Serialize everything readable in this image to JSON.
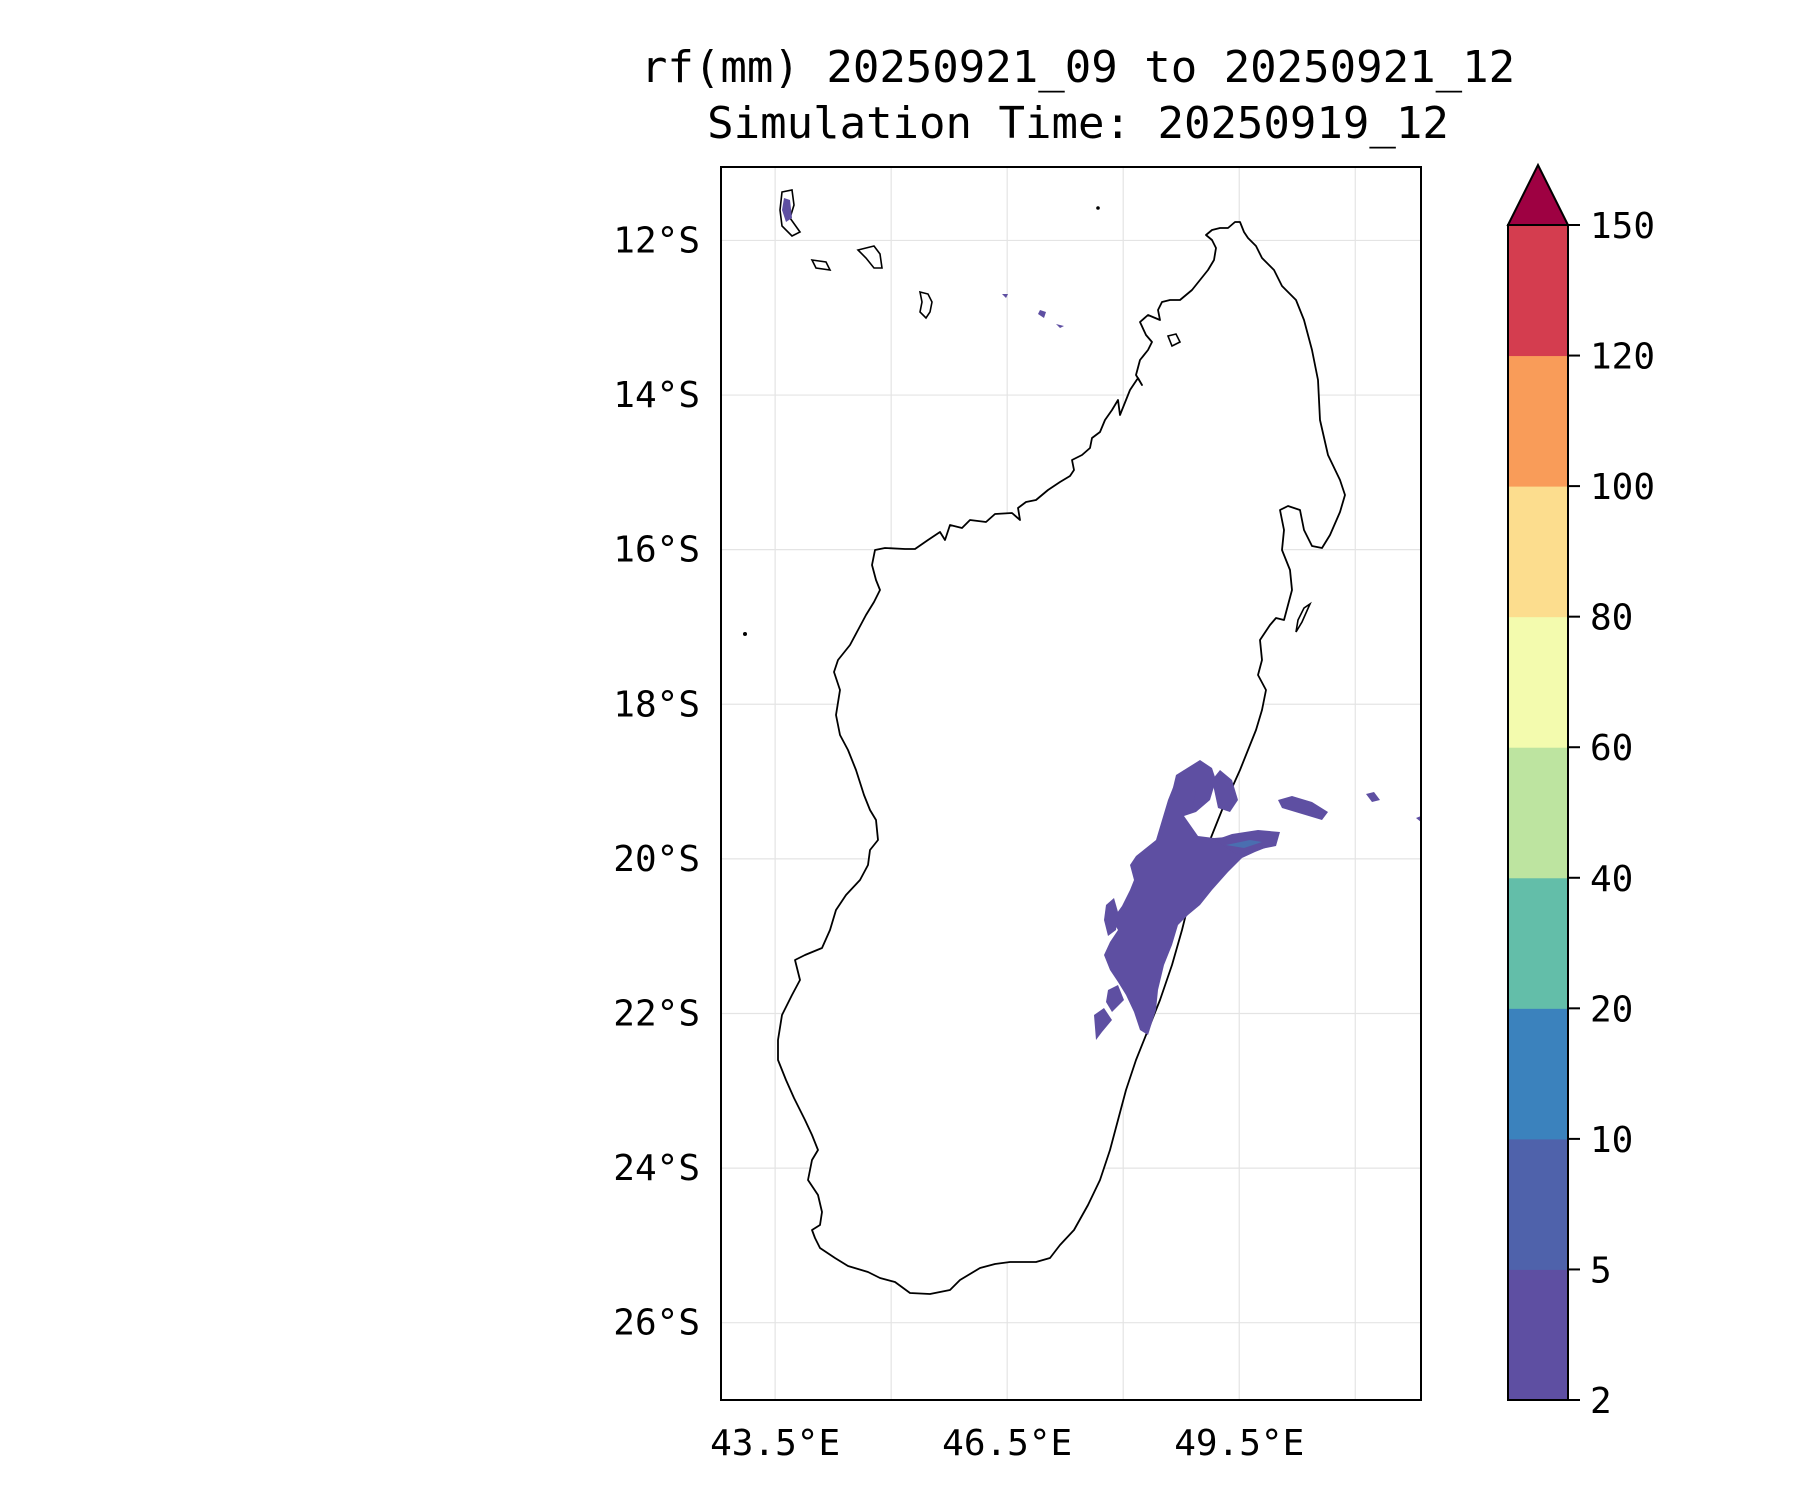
{
  "title": {
    "line1": "rf(mm) 20250921_09 to 20250921_12",
    "line2": "Simulation Time: 20250919_12"
  },
  "map": {
    "lon_range": [
      42.8,
      51.85
    ],
    "lat_range": [
      -27.0,
      -11.05
    ],
    "lat_ticks": [
      {
        "value": -12,
        "label": "12°S"
      },
      {
        "value": -14,
        "label": "14°S"
      },
      {
        "value": -16,
        "label": "16°S"
      },
      {
        "value": -18,
        "label": "18°S"
      },
      {
        "value": -20,
        "label": "20°S"
      },
      {
        "value": -22,
        "label": "22°S"
      },
      {
        "value": -24,
        "label": "24°S"
      },
      {
        "value": -26,
        "label": "26°S"
      }
    ],
    "lon_ticks": [
      {
        "value": 43.5,
        "label": "43.5°E"
      },
      {
        "value": 45.0,
        "label": ""
      },
      {
        "value": 46.5,
        "label": "46.5°E"
      },
      {
        "value": 48.0,
        "label": ""
      },
      {
        "value": 49.5,
        "label": "49.5°E"
      },
      {
        "value": 51.0,
        "label": ""
      }
    ],
    "grid": true,
    "coastline_color": "#000000",
    "rain_color": "#5e4fa2",
    "rain_color_2": "#4a6eb0"
  },
  "colorbar": {
    "levels": [
      "2",
      "5",
      "10",
      "20",
      "40",
      "60",
      "80",
      "100",
      "120",
      "150"
    ],
    "colors": [
      "#5e4fa2",
      "#4f62ab",
      "#3b82bd",
      "#63bea9",
      "#bde4a0",
      "#f3fbae",
      "#fcdd8e",
      "#f99c59",
      "#d43d4f"
    ],
    "extend_color": "#9e0142",
    "extend": "max"
  }
}
